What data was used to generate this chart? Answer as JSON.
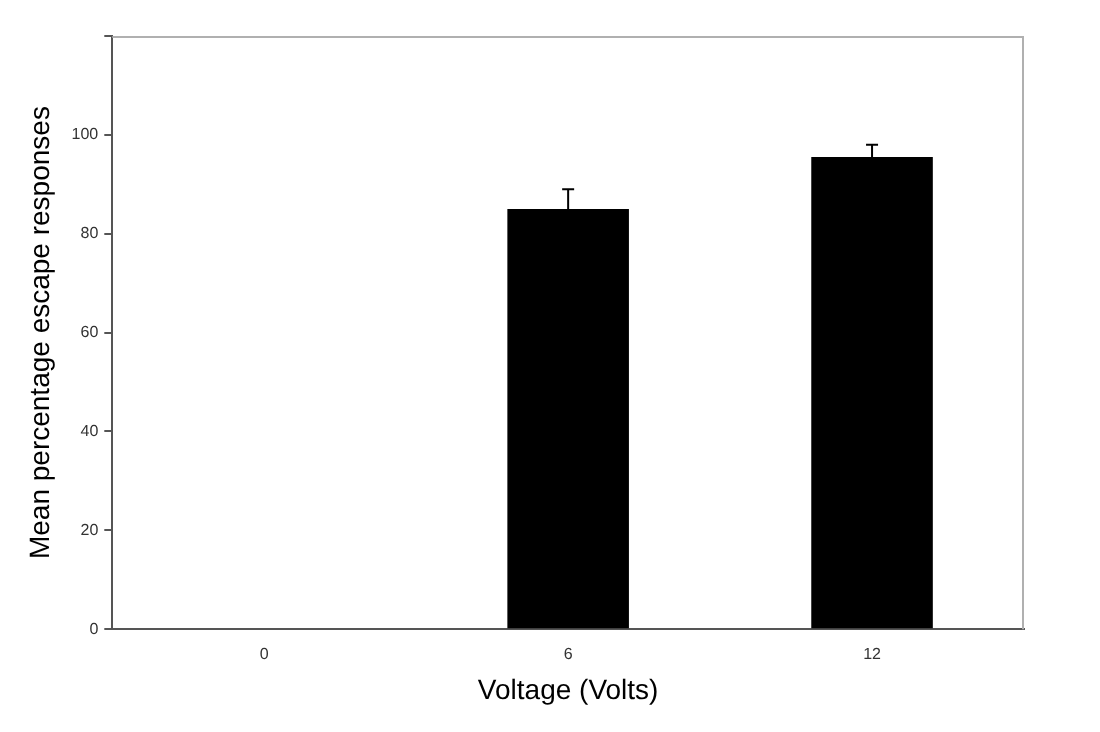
{
  "chart_data": {
    "type": "bar",
    "xlabel": "Voltage (Volts)",
    "ylabel": "Mean percentage escape responses",
    "categories": [
      "0",
      "6",
      "12"
    ],
    "values": [
      0,
      85,
      95.5
    ],
    "color": "#000000",
    "errors": [
      null,
      [
        85,
        89
      ],
      [
        95.5,
        98
      ]
    ],
    "ylim": [
      0,
      120
    ],
    "yticks": [
      0,
      20,
      40,
      60,
      80,
      100,
      {
        "value": 120,
        "label": null
      }
    ],
    "grid": false,
    "legend": false
  }
}
